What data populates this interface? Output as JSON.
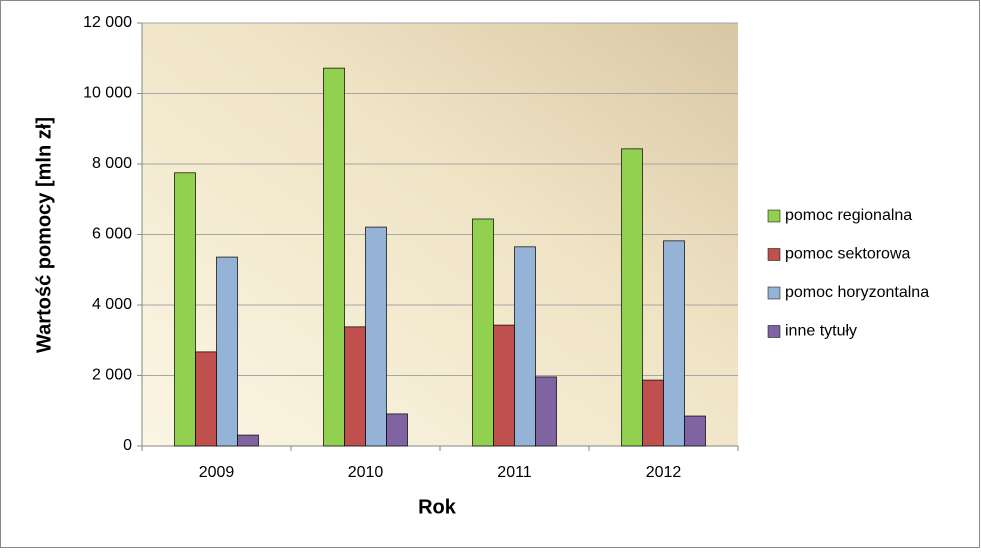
{
  "chart_data": {
    "type": "bar",
    "x_label": "Rok",
    "y_label": "Wartość pomocy  [mln zł]",
    "categories": [
      "2009",
      "2010",
      "2011",
      "2012"
    ],
    "series": [
      {
        "name": "pomoc regionalna",
        "color": "#92d050",
        "values": [
          7750,
          10720,
          6440,
          8430
        ]
      },
      {
        "name": "pomoc sektorowa",
        "color": "#c0504d",
        "values": [
          2670,
          3380,
          3430,
          1870
        ]
      },
      {
        "name": "pomoc horyzontalna",
        "color": "#95b3d7",
        "values": [
          5360,
          6210,
          5650,
          5820
        ]
      },
      {
        "name": "inne tytuły",
        "color": "#8064a2",
        "values": [
          310,
          910,
          1960,
          850
        ]
      }
    ],
    "ylim": [
      0,
      12000
    ],
    "yticks": [
      0,
      {
        "value": 2000,
        "label": "2 000"
      },
      {
        "value": 4000,
        "label": "4 000"
      },
      {
        "value": 6000,
        "label": "6 000"
      },
      {
        "value": 8000,
        "label": "8 000"
      },
      {
        "value": 10000,
        "label": "10 000"
      },
      {
        "value": 12000,
        "label": "12 000"
      }
    ],
    "grid": true,
    "legend": "right"
  }
}
